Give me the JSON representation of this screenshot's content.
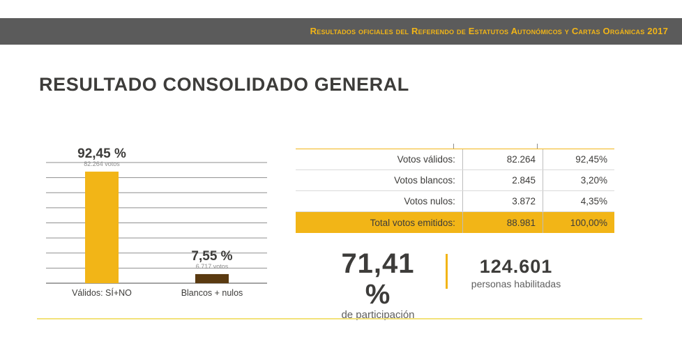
{
  "header": {
    "title": "Resultados oficiales del Referendo de Estatutos Autonómicos y Cartas Orgánicas 2017"
  },
  "page_title": "RESULTADO CONSOLIDADO GENERAL",
  "colors": {
    "accent": "#f2b517",
    "bar_valid": "#f2b517",
    "bar_blank_null": "#5a3a10",
    "header_bg": "#5b5b5b",
    "text_dark": "#3d3c3a"
  },
  "chart_data": {
    "type": "bar",
    "categories": [
      "Válidos: SÍ+NO",
      "Blancos + nulos"
    ],
    "values": [
      92.45,
      7.55
    ],
    "value_labels": [
      "92,45 %",
      "7,55 %"
    ],
    "vote_labels": [
      "82.264 votos",
      "6.717 votos"
    ],
    "ylim": [
      0,
      100
    ],
    "grid": true
  },
  "table": {
    "rows": [
      {
        "label": "Votos válidos:",
        "votes": "82.264",
        "pct": "92,45%"
      },
      {
        "label": "Votos blancos:",
        "votes": "2.845",
        "pct": "3,20%"
      },
      {
        "label": "Votos nulos:",
        "votes": "3.872",
        "pct": "4,35%"
      }
    ],
    "total": {
      "label": "Total votos emitidos:",
      "votes": "88.981",
      "pct": "100,00%"
    }
  },
  "participation": {
    "value": "71,41 %",
    "label": "de participación"
  },
  "enabled": {
    "value": "124.601",
    "label": "personas habilitadas"
  }
}
